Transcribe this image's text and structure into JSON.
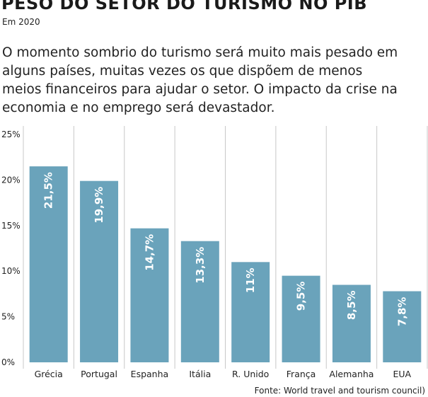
{
  "header": {
    "title": "PESO DO SETOR DO TURISMO NO PIB",
    "subtitle": "Em 2020",
    "lead": "O momento sombrio do turismo será muito mais pesado em alguns países, muitas vezes os que dispõem de menos meios financeiros para ajudar o setor. O impacto da crise na economia e no emprego será devastador."
  },
  "chart_data": {
    "type": "bar",
    "categories": [
      "Grécia",
      "Portugal",
      "Espanha",
      "Itália",
      "R. Unido",
      "França",
      "Alemanha",
      "EUA"
    ],
    "values": [
      21.5,
      19.9,
      14.7,
      13.3,
      11,
      9.5,
      8.5,
      7.8
    ],
    "value_labels": [
      "21,5%",
      "19,9%",
      "14,7%",
      "13,3%",
      "11%",
      "9,5%",
      "8,5%",
      "7,8%"
    ],
    "yticks": [
      0,
      5,
      10,
      15,
      20,
      25
    ],
    "ytick_labels": [
      "0%",
      "5%",
      "10%",
      "15%",
      "20%",
      "25%"
    ],
    "ylim": [
      0,
      25
    ],
    "grid": "vertical separators between categories",
    "bar_color": "#6aa3bb",
    "grid_color": "#c8c8c8",
    "label_color": "#ffffff"
  },
  "footer": {
    "source": "Fonte: World travel and tourism council)"
  }
}
